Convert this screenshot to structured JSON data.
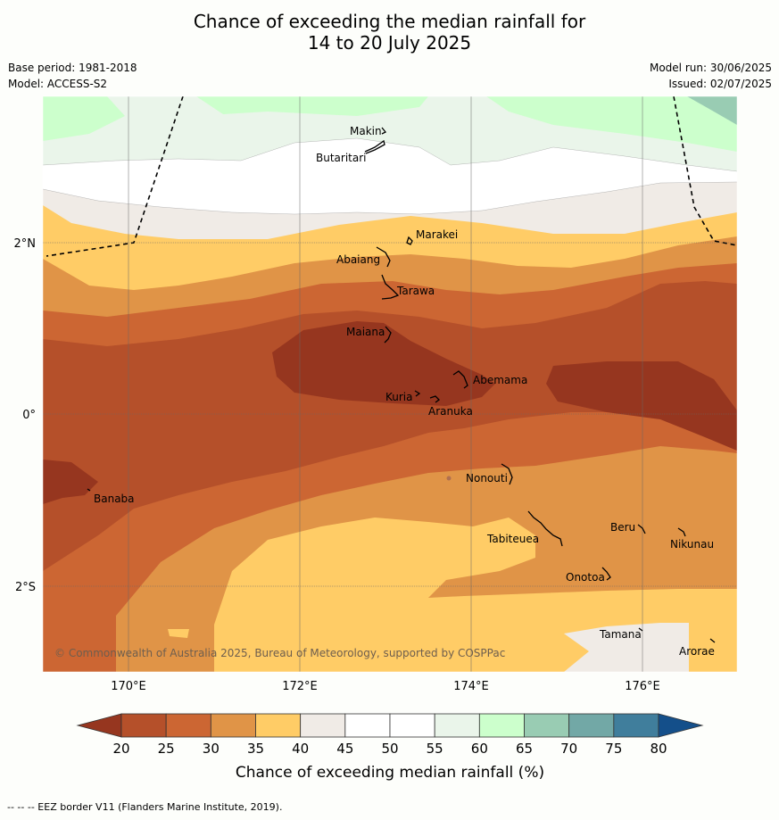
{
  "title": {
    "line1": "Chance of exceeding the median rainfall for",
    "line2": "14 to 20 July 2025"
  },
  "meta": {
    "base_period": "Base period: 1981-2018",
    "model": "Model: ACCESS-S2",
    "model_run": "Model run: 30/06/2025",
    "issued": "Issued: 02/07/2025"
  },
  "axes": {
    "lon_ticks": [
      "170°E",
      "172°E",
      "174°E",
      "176°E"
    ],
    "lat_ticks": [
      "2°N",
      "0°",
      "2°S"
    ]
  },
  "places": [
    "Makin",
    "Butaritari",
    "Marakei",
    "Abaiang",
    "Tarawa",
    "Maiana",
    "Abemama",
    "Kuria",
    "Aranuka",
    "Nonouti",
    "Banaba",
    "Beru",
    "Tabiteuea",
    "Nikunau",
    "Onotoa",
    "Tamana",
    "Arorae"
  ],
  "copyright": "© Commonwealth of Australia 2025, Bureau of Meteorology, supported by COSPPac",
  "colorbar": {
    "label": "Chance of exceeding median rainfall (%)",
    "ticks": [
      "20",
      "25",
      "30",
      "35",
      "40",
      "45",
      "50",
      "55",
      "60",
      "65",
      "70",
      "75",
      "80"
    ],
    "colors": [
      "#b5502a",
      "#cc6633",
      "#e09447",
      "#ffcc66",
      "#f0ebe6",
      "#ffffff",
      "#ffffff",
      "#eaf5ea",
      "#ccffcc",
      "#99ccb3",
      "#72a8a6",
      "#407e9c"
    ],
    "under_color": "#96361f",
    "over_color": "#144f8a"
  },
  "footer": "--  --  -- EEZ border V11 (Flanders Marine Institute, 2019)."
}
